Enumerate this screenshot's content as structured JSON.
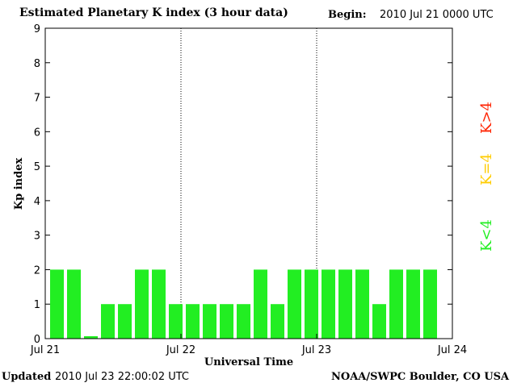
{
  "header": {
    "title": "Estimated Planetary K index (3 hour data)",
    "begin_label": "Begin:",
    "begin_value": "2010 Jul 21 0000 UTC"
  },
  "footer": {
    "updated_label": "Updated",
    "updated_value": "2010 Jul 23 22:00:02 UTC",
    "credit": "NOAA/SWPC Boulder, CO USA"
  },
  "legend": [
    {
      "label": "K<4",
      "color": "#22ee22"
    },
    {
      "label": "K=4",
      "color": "#ffcc00"
    },
    {
      "label": "K>4",
      "color": "#ff2200"
    }
  ],
  "chart_data": {
    "type": "bar",
    "title": "Estimated Planetary K index (3 hour data)",
    "xlabel": "Universal Time",
    "ylabel": "Kp index",
    "ylim": [
      0,
      9
    ],
    "yticks": [
      0,
      1,
      2,
      3,
      4,
      5,
      6,
      7,
      8,
      9
    ],
    "xticks": [
      "Jul 21",
      "Jul 22",
      "Jul 23",
      "Jul 24"
    ],
    "day_dividers": [
      "Jul 22",
      "Jul 23"
    ],
    "interval_hours": 3,
    "bar_color": "#22ee22",
    "values": [
      2,
      2,
      0.07,
      1,
      1,
      2,
      2,
      1,
      1,
      1,
      1,
      1,
      2,
      1,
      2,
      2,
      2,
      2,
      2,
      1,
      2,
      2,
      2
    ]
  }
}
